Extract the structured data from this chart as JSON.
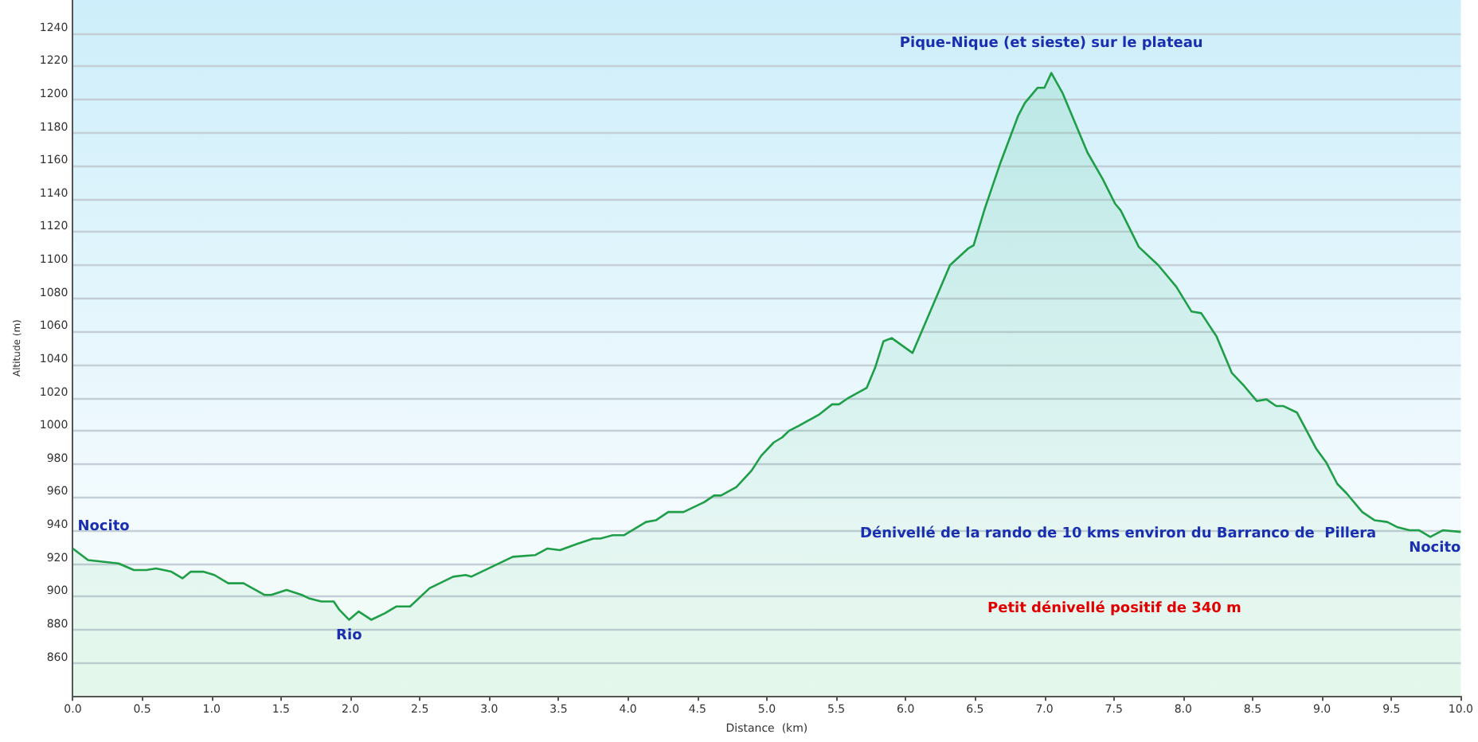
{
  "chart_data": {
    "type": "area",
    "xlabel": "Distance  (km)",
    "ylabel": "Altitude (m)",
    "xlim": [
      0,
      10
    ],
    "ylim": [
      840,
      1260
    ],
    "xticks": [
      {
        "value": 0,
        "label": "0.0"
      },
      {
        "value": 0.5,
        "label": "0.5"
      },
      {
        "value": 1,
        "label": "1.0"
      },
      {
        "value": 1.5,
        "label": "1.5"
      },
      {
        "value": 2,
        "label": "2.0"
      },
      {
        "value": 2.5,
        "label": "2.5"
      },
      {
        "value": 3,
        "label": "3.0"
      },
      {
        "value": 3.5,
        "label": "3.5"
      },
      {
        "value": 4,
        "label": "4.0"
      },
      {
        "value": 4.5,
        "label": "4.5"
      },
      {
        "value": 5,
        "label": "5.0"
      },
      {
        "value": 5.5,
        "label": "5.5"
      },
      {
        "value": 6,
        "label": "6.0"
      },
      {
        "value": 6.5,
        "label": "6.5"
      },
      {
        "value": 7,
        "label": "7.0"
      },
      {
        "value": 7.5,
        "label": "7.5"
      },
      {
        "value": 8,
        "label": "8.0"
      },
      {
        "value": 8.5,
        "label": "8.5"
      },
      {
        "value": 9,
        "label": "9.0"
      },
      {
        "value": 9.5,
        "label": "9.5"
      },
      {
        "value": 10,
        "label": "10.0"
      }
    ],
    "yticks": [
      860,
      880,
      900,
      920,
      940,
      960,
      980,
      1000,
      1020,
      1040,
      1060,
      1080,
      1100,
      1120,
      1140,
      1160,
      1180,
      1200,
      1220,
      1240
    ],
    "grid": "y",
    "marker": "none",
    "x": [
      0,
      0.11,
      0.33,
      0.44,
      0.53,
      0.6,
      0.71,
      0.79,
      0.85,
      0.94,
      1.02,
      1.12,
      1.23,
      1.38,
      1.43,
      1.54,
      1.65,
      1.7,
      1.79,
      1.88,
      1.92,
      1.99,
      2.06,
      2.15,
      2.25,
      2.33,
      2.43,
      2.57,
      2.74,
      2.83,
      2.87,
      3.17,
      3.33,
      3.42,
      3.51,
      3.64,
      3.75,
      3.8,
      3.89,
      3.97,
      4.13,
      4.2,
      4.29,
      4.4,
      4.55,
      4.62,
      4.67,
      4.78,
      4.89,
      4.96,
      5.05,
      5.11,
      5.16,
      5.23,
      5.38,
      5.47,
      5.52,
      5.59,
      5.72,
      5.78,
      5.84,
      5.9,
      6.05,
      6.32,
      6.45,
      6.49,
      6.57,
      6.68,
      6.81,
      6.86,
      6.95,
      7,
      7.05,
      7.13,
      7.31,
      7.42,
      7.51,
      7.55,
      7.68,
      7.82,
      7.95,
      8.06,
      8.13,
      8.24,
      8.35,
      8.44,
      8.53,
      8.6,
      8.67,
      8.72,
      8.82,
      8.96,
      9.03,
      9.11,
      9.18,
      9.29,
      9.38,
      9.47,
      9.54,
      9.63,
      9.7,
      9.78,
      9.87,
      10
    ],
    "series": [
      {
        "color": "#1f9e48",
        "values": [
          929,
          922,
          920,
          916,
          916,
          917,
          915,
          911,
          915,
          915,
          913,
          908,
          908,
          901,
          901,
          904,
          901,
          899,
          897,
          897,
          892,
          886,
          891,
          886,
          890,
          894,
          894,
          905,
          912,
          913,
          912,
          924,
          925,
          929,
          928,
          932,
          935,
          935,
          937,
          937,
          945,
          946,
          951,
          951,
          957,
          961,
          961,
          966,
          976,
          985,
          993,
          996,
          1000,
          1003,
          1010,
          1016,
          1016,
          1020,
          1026,
          1038,
          1054,
          1056,
          1047,
          1100,
          1110,
          1112,
          1134,
          1161,
          1190,
          1198,
          1207,
          1207,
          1216,
          1204,
          1168,
          1152,
          1137,
          1133,
          1111,
          1100,
          1087,
          1072,
          1071,
          1057,
          1035,
          1027,
          1018,
          1019,
          1015,
          1015,
          1011,
          989,
          981,
          968,
          962,
          951,
          946,
          945,
          942,
          940,
          940,
          936,
          940,
          939
        ]
      }
    ],
    "annotations": [
      {
        "text": "Nocito",
        "x": 0,
        "y": 929
      },
      {
        "text": "Rio",
        "x": 1.99,
        "y": 886
      },
      {
        "text": "Pique-Nique (et sieste) sur le plateau",
        "x": 7.05,
        "y": 1216
      },
      {
        "text": "Nocito",
        "x": 10,
        "y": 939
      },
      "Dénivellé de la rando de 10 kms environ du Barranco de  Pillera",
      "Petit dénivellé positif de 340 m"
    ]
  }
}
